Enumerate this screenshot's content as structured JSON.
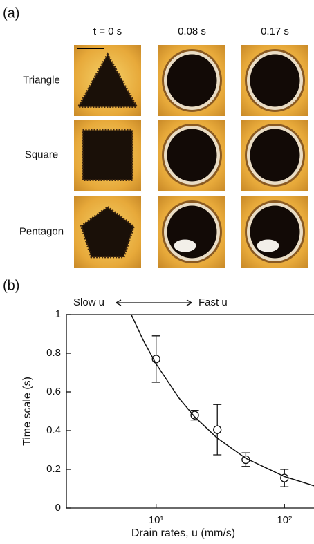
{
  "panel_a": {
    "label": "(a)",
    "columns": [
      "t = 0 s",
      "0.08 s",
      "0.17 s"
    ],
    "rows": [
      "Triangle",
      "Square",
      "Pentagon"
    ]
  },
  "panel_b_label": "(b)",
  "chart_data": {
    "type": "scatter",
    "x_label": "Drain rates, u (mm/s)",
    "y_label": "Time scale (s)",
    "annotations": [
      "Slow u",
      "Fast u"
    ],
    "log_x": true,
    "xlim": [
      2,
      170
    ],
    "xticks": [
      {
        "value": 10,
        "label": "10¹"
      },
      {
        "value": 100,
        "label": "10²"
      }
    ],
    "ylim": [
      0,
      1
    ],
    "yticks": [
      0,
      0.2,
      0.4,
      0.6,
      0.8,
      1
    ],
    "series": [
      {
        "color": "#111111",
        "x": [
          10,
          20,
          30,
          50,
          100
        ],
        "values": [
          0.77,
          0.48,
          0.405,
          0.25,
          0.155
        ],
        "errors": [
          0.12,
          0.025,
          0.13,
          0.035,
          0.045
        ]
      },
      {
        "color": "#111111",
        "line": true,
        "x": [
          6.4,
          8,
          10,
          15,
          20,
          30,
          50,
          100,
          170
        ],
        "values": [
          1,
          0.863,
          0.745,
          0.57,
          0.471,
          0.361,
          0.257,
          0.163,
          0.115
        ]
      }
    ]
  }
}
